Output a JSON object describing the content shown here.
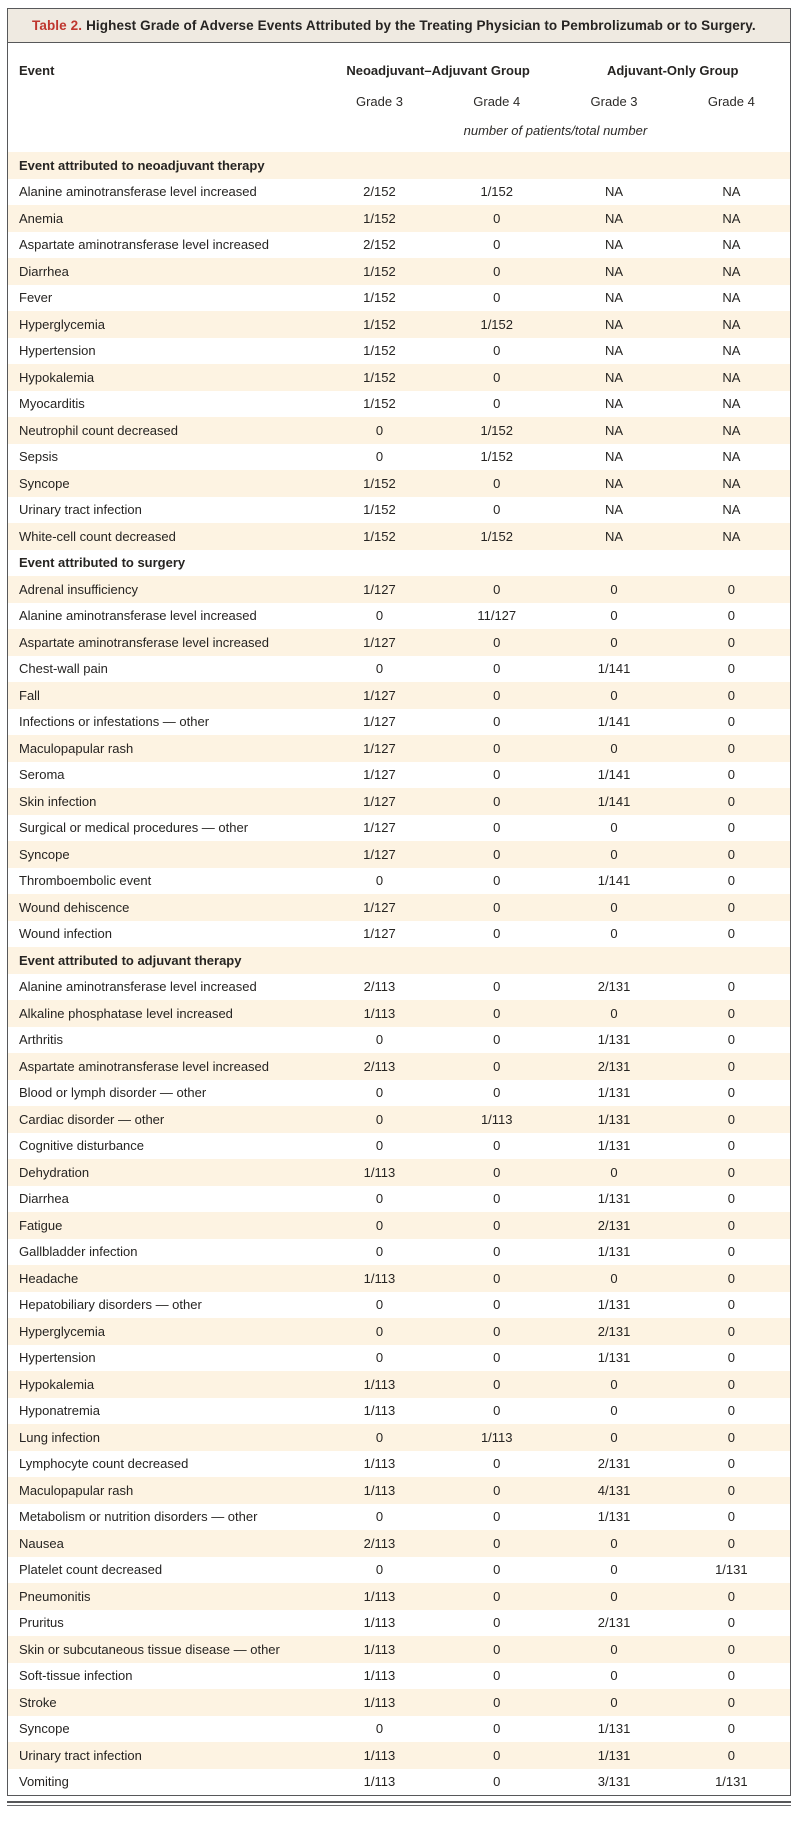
{
  "colors": {
    "accent_red": "#bf362e",
    "title_bar_bg": "#efeae1",
    "row_stripe": "#fdf3e2",
    "border": "#57585a"
  },
  "table": {
    "label": "Table 2.",
    "title": "Highest Grade of Adverse Events Attributed by the Treating Physician to Pembrolizumab or to Surgery.",
    "header": {
      "event_col": "Event",
      "groups": [
        {
          "label": "Neoadjuvant–Adjuvant Group",
          "subcols": [
            "Grade 3",
            "Grade 4"
          ]
        },
        {
          "label": "Adjuvant-Only Group",
          "subcols": [
            "Grade 3",
            "Grade 4"
          ]
        }
      ],
      "unit_note": "number of patients/total number"
    },
    "sections": [
      {
        "header": "Event attributed to neoadjuvant therapy",
        "rows": [
          {
            "event": "Alanine aminotransferase level increased",
            "values": [
              "2/152",
              "1/152",
              "NA",
              "NA"
            ]
          },
          {
            "event": "Anemia",
            "values": [
              "1/152",
              "0",
              "NA",
              "NA"
            ]
          },
          {
            "event": "Aspartate aminotransferase level increased",
            "values": [
              "2/152",
              "0",
              "NA",
              "NA"
            ]
          },
          {
            "event": "Diarrhea",
            "values": [
              "1/152",
              "0",
              "NA",
              "NA"
            ]
          },
          {
            "event": "Fever",
            "values": [
              "1/152",
              "0",
              "NA",
              "NA"
            ]
          },
          {
            "event": "Hyperglycemia",
            "values": [
              "1/152",
              "1/152",
              "NA",
              "NA"
            ]
          },
          {
            "event": "Hypertension",
            "values": [
              "1/152",
              "0",
              "NA",
              "NA"
            ]
          },
          {
            "event": "Hypokalemia",
            "values": [
              "1/152",
              "0",
              "NA",
              "NA"
            ]
          },
          {
            "event": "Myocarditis",
            "values": [
              "1/152",
              "0",
              "NA",
              "NA"
            ]
          },
          {
            "event": "Neutrophil count decreased",
            "values": [
              "0",
              "1/152",
              "NA",
              "NA"
            ]
          },
          {
            "event": "Sepsis",
            "values": [
              "0",
              "1/152",
              "NA",
              "NA"
            ]
          },
          {
            "event": "Syncope",
            "values": [
              "1/152",
              "0",
              "NA",
              "NA"
            ]
          },
          {
            "event": "Urinary tract infection",
            "values": [
              "1/152",
              "0",
              "NA",
              "NA"
            ]
          },
          {
            "event": "White-cell count decreased",
            "values": [
              "1/152",
              "1/152",
              "NA",
              "NA"
            ]
          }
        ]
      },
      {
        "header": "Event attributed to surgery",
        "rows": [
          {
            "event": "Adrenal insufficiency",
            "values": [
              "1/127",
              "0",
              "0",
              "0"
            ]
          },
          {
            "event": "Alanine aminotransferase level increased",
            "values": [
              "0",
              "11/127",
              "0",
              "0"
            ]
          },
          {
            "event": "Aspartate aminotransferase level increased",
            "values": [
              "1/127",
              "0",
              "0",
              "0"
            ]
          },
          {
            "event": "Chest-wall pain",
            "values": [
              "0",
              "0",
              "1/141",
              "0"
            ]
          },
          {
            "event": "Fall",
            "values": [
              "1/127",
              "0",
              "0",
              "0"
            ]
          },
          {
            "event": "Infections or infestations — other",
            "values": [
              "1/127",
              "0",
              "1/141",
              "0"
            ]
          },
          {
            "event": "Maculopapular rash",
            "values": [
              "1/127",
              "0",
              "0",
              "0"
            ]
          },
          {
            "event": "Seroma",
            "values": [
              "1/127",
              "0",
              "1/141",
              "0"
            ]
          },
          {
            "event": "Skin infection",
            "values": [
              "1/127",
              "0",
              "1/141",
              "0"
            ]
          },
          {
            "event": "Surgical or medical procedures — other",
            "values": [
              "1/127",
              "0",
              "0",
              "0"
            ]
          },
          {
            "event": "Syncope",
            "values": [
              "1/127",
              "0",
              "0",
              "0"
            ]
          },
          {
            "event": "Thromboembolic event",
            "values": [
              "0",
              "0",
              "1/141",
              "0"
            ]
          },
          {
            "event": "Wound dehiscence",
            "values": [
              "1/127",
              "0",
              "0",
              "0"
            ]
          },
          {
            "event": "Wound infection",
            "values": [
              "1/127",
              "0",
              "0",
              "0"
            ]
          }
        ]
      },
      {
        "header": "Event attributed to adjuvant therapy",
        "rows": [
          {
            "event": "Alanine aminotransferase level increased",
            "values": [
              "2/113",
              "0",
              "2/131",
              "0"
            ]
          },
          {
            "event": "Alkaline phosphatase level increased",
            "values": [
              "1/113",
              "0",
              "0",
              "0"
            ]
          },
          {
            "event": "Arthritis",
            "values": [
              "0",
              "0",
              "1/131",
              "0"
            ]
          },
          {
            "event": "Aspartate aminotransferase level increased",
            "values": [
              "2/113",
              "0",
              "2/131",
              "0"
            ]
          },
          {
            "event": "Blood or lymph disorder — other",
            "values": [
              "0",
              "0",
              "1/131",
              "0"
            ]
          },
          {
            "event": "Cardiac disorder — other",
            "values": [
              "0",
              "1/113",
              "1/131",
              "0"
            ]
          },
          {
            "event": "Cognitive disturbance",
            "values": [
              "0",
              "0",
              "1/131",
              "0"
            ]
          },
          {
            "event": "Dehydration",
            "values": [
              "1/113",
              "0",
              "0",
              "0"
            ]
          },
          {
            "event": "Diarrhea",
            "values": [
              "0",
              "0",
              "1/131",
              "0"
            ]
          },
          {
            "event": "Fatigue",
            "values": [
              "0",
              "0",
              "2/131",
              "0"
            ]
          },
          {
            "event": "Gallbladder infection",
            "values": [
              "0",
              "0",
              "1/131",
              "0"
            ]
          },
          {
            "event": "Headache",
            "values": [
              "1/113",
              "0",
              "0",
              "0"
            ]
          },
          {
            "event": "Hepatobiliary disorders — other",
            "values": [
              "0",
              "0",
              "1/131",
              "0"
            ]
          },
          {
            "event": "Hyperglycemia",
            "values": [
              "0",
              "0",
              "2/131",
              "0"
            ]
          },
          {
            "event": "Hypertension",
            "values": [
              "0",
              "0",
              "1/131",
              "0"
            ]
          },
          {
            "event": "Hypokalemia",
            "values": [
              "1/113",
              "0",
              "0",
              "0"
            ]
          },
          {
            "event": "Hyponatremia",
            "values": [
              "1/113",
              "0",
              "0",
              "0"
            ]
          },
          {
            "event": "Lung infection",
            "values": [
              "0",
              "1/113",
              "0",
              "0"
            ]
          },
          {
            "event": "Lymphocyte count decreased",
            "values": [
              "1/113",
              "0",
              "2/131",
              "0"
            ]
          },
          {
            "event": "Maculopapular rash",
            "values": [
              "1/113",
              "0",
              "4/131",
              "0"
            ]
          },
          {
            "event": "Metabolism or nutrition disorders — other",
            "values": [
              "0",
              "0",
              "1/131",
              "0"
            ]
          },
          {
            "event": "Nausea",
            "values": [
              "2/113",
              "0",
              "0",
              "0"
            ]
          },
          {
            "event": "Platelet count decreased",
            "values": [
              "0",
              "0",
              "0",
              "1/131"
            ]
          },
          {
            "event": "Pneumonitis",
            "values": [
              "1/113",
              "0",
              "0",
              "0"
            ]
          },
          {
            "event": "Pruritus",
            "values": [
              "1/113",
              "0",
              "2/131",
              "0"
            ]
          },
          {
            "event": "Skin or subcutaneous tissue disease — other",
            "values": [
              "1/113",
              "0",
              "0",
              "0"
            ]
          },
          {
            "event": "Soft-tissue infection",
            "values": [
              "1/113",
              "0",
              "0",
              "0"
            ]
          },
          {
            "event": "Stroke",
            "values": [
              "1/113",
              "0",
              "0",
              "0"
            ]
          },
          {
            "event": "Syncope",
            "values": [
              "0",
              "0",
              "1/131",
              "0"
            ]
          },
          {
            "event": "Urinary tract infection",
            "values": [
              "1/113",
              "0",
              "1/131",
              "0"
            ]
          },
          {
            "event": "Vomiting",
            "values": [
              "1/113",
              "0",
              "3/131",
              "1/131"
            ]
          }
        ]
      }
    ]
  }
}
